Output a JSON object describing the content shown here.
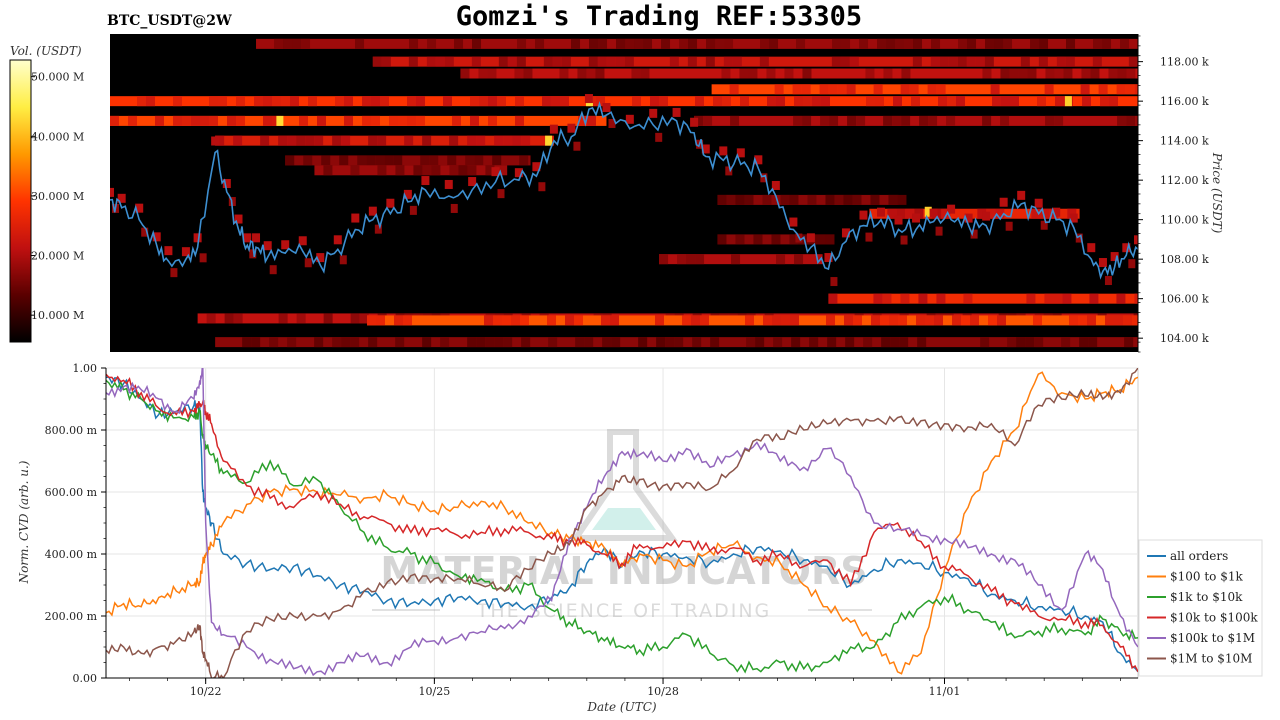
{
  "header": {
    "title": "Gomzi's Trading REF:53305",
    "pair_label": "BTC_USDT@2W"
  },
  "watermark": {
    "line1": "MATERIAL INDICATORS",
    "line2": "THE SCIENCE OF TRADING"
  },
  "chart_data": [
    {
      "type": "heatmap",
      "name": "order-book-heatmap",
      "colorbar": {
        "label": "Vol. (USDT)",
        "ticks": [
          "10.000 M",
          "20.000 M",
          "30.000 M",
          "40.000 M",
          "50.000 M"
        ],
        "tick_values": [
          10,
          20,
          30,
          40,
          50
        ],
        "range": [
          5.5,
          52.8
        ],
        "colors": [
          "#000000",
          "#5a0000",
          "#c01010",
          "#ff3300",
          "#ff9900",
          "#ffee44",
          "#ffffcc"
        ]
      },
      "ylabel": "Price (USDT)",
      "ylim": [
        103.3,
        119.4
      ],
      "yticks": [
        "104.00 k",
        "106.00 k",
        "108.00 k",
        "110.00 k",
        "112.00 k",
        "114.00 k",
        "116.00 k",
        "118.00 k"
      ],
      "ytick_values": [
        104,
        106,
        108,
        110,
        112,
        114,
        116,
        118
      ],
      "xlim": [
        0,
        17.6
      ],
      "bands": [
        {
          "price": 118.9,
          "x0": 2.5,
          "x1": 17.6,
          "intensity": 0.45
        },
        {
          "price": 118.0,
          "x0": 4.5,
          "x1": 17.6,
          "intensity": 0.6
        },
        {
          "price": 117.4,
          "x0": 6.0,
          "x1": 17.6,
          "intensity": 0.55
        },
        {
          "price": 116.6,
          "x0": 10.3,
          "x1": 17.6,
          "intensity": 0.85
        },
        {
          "price": 116.0,
          "x0": 0.0,
          "x1": 17.6,
          "intensity": 0.8
        },
        {
          "price": 115.0,
          "x0": 0.0,
          "x1": 8.5,
          "intensity": 0.85
        },
        {
          "price": 115.0,
          "x0": 10.0,
          "x1": 17.6,
          "intensity": 0.5
        },
        {
          "price": 114.0,
          "x0": 1.8,
          "x1": 7.6,
          "intensity": 0.65
        },
        {
          "price": 113.0,
          "x0": 3.0,
          "x1": 7.2,
          "intensity": 0.4
        },
        {
          "price": 112.5,
          "x0": 3.5,
          "x1": 6.8,
          "intensity": 0.45
        },
        {
          "price": 111.0,
          "x0": 10.4,
          "x1": 13.5,
          "intensity": 0.4
        },
        {
          "price": 110.3,
          "x0": 13.0,
          "x1": 16.6,
          "intensity": 0.7
        },
        {
          "price": 109.0,
          "x0": 10.4,
          "x1": 12.4,
          "intensity": 0.4
        },
        {
          "price": 108.0,
          "x0": 9.4,
          "x1": 12.2,
          "intensity": 0.5
        },
        {
          "price": 106.0,
          "x0": 12.3,
          "x1": 17.6,
          "intensity": 0.75
        },
        {
          "price": 105.0,
          "x0": 1.5,
          "x1": 17.6,
          "intensity": 0.55
        },
        {
          "price": 104.9,
          "x0": 4.4,
          "x1": 17.6,
          "intensity": 0.9
        },
        {
          "price": 103.8,
          "x0": 1.8,
          "x1": 17.6,
          "intensity": 0.4
        }
      ],
      "hot_spots": [
        {
          "x": 2.9,
          "price": 115.0,
          "intensity": 1.0
        },
        {
          "x": 8.2,
          "price": 116.0,
          "intensity": 1.0
        },
        {
          "x": 7.5,
          "price": 114.0,
          "intensity": 0.95
        },
        {
          "x": 16.4,
          "price": 116.0,
          "intensity": 0.9
        },
        {
          "x": 14.0,
          "price": 110.4,
          "intensity": 0.9
        }
      ],
      "series": [
        {
          "name": "price",
          "color": "#3d8fd1",
          "x": [
            0,
            0.2,
            0.5,
            0.8,
            1.0,
            1.3,
            1.5,
            1.8,
            2.0,
            2.2,
            2.35,
            2.5,
            2.7,
            3.0,
            3.3,
            3.6,
            3.9,
            4.2,
            4.5,
            4.8,
            5.1,
            5.4,
            5.8,
            6.2,
            6.6,
            7.0,
            7.3,
            7.6,
            7.9,
            8.2,
            8.5,
            8.9,
            9.3,
            9.7,
            10.0,
            10.2,
            10.5,
            10.8,
            11.1,
            11.4,
            11.7,
            12.0,
            12.3,
            12.6,
            12.9,
            13.2,
            13.5,
            13.8,
            14.1,
            14.4,
            14.7,
            15.0,
            15.3,
            15.6,
            15.9,
            16.2,
            16.5,
            16.8,
            17.0,
            17.2,
            17.4,
            17.6
          ],
          "y": [
            111.0,
            110.6,
            110.0,
            108.7,
            107.9,
            108.0,
            108.6,
            113.4,
            111.4,
            109.5,
            108.7,
            108.6,
            108.1,
            108.3,
            108.4,
            107.7,
            108.5,
            109.5,
            110.0,
            110.3,
            110.9,
            111.5,
            111.2,
            111.5,
            111.9,
            112.0,
            112.2,
            114.0,
            114.2,
            115.6,
            115.3,
            114.6,
            114.8,
            115.0,
            114.4,
            113.2,
            113.0,
            112.8,
            112.6,
            111.2,
            109.5,
            108.6,
            107.5,
            108.9,
            109.7,
            110.0,
            109.5,
            109.5,
            109.9,
            110.0,
            109.7,
            109.7,
            110.3,
            110.8,
            110.3,
            110.0,
            109.6,
            108.0,
            107.4,
            107.6,
            108.2,
            108.5
          ]
        }
      ]
    },
    {
      "type": "line",
      "name": "cvd-chart",
      "xlabel": "Date (UTC)",
      "ylabel": "Norm. CVD (arb. u.)",
      "ylim": [
        0,
        1
      ],
      "yticks": [
        "0.00",
        "200.00 m",
        "400.00 m",
        "600.00 m",
        "800.00 m",
        "1.00"
      ],
      "ytick_values": [
        0,
        0.2,
        0.4,
        0.6,
        0.8,
        1.0
      ],
      "xlim": [
        0,
        17.6
      ],
      "xticks": [
        "10/22",
        "10/25",
        "10/28",
        "11/01"
      ],
      "xtick_values": [
        1.7,
        5.6,
        9.5,
        14.3
      ],
      "legend": "bottom-right",
      "grid": true,
      "series": [
        {
          "name": "all orders",
          "color": "#1f77b4",
          "x": [
            0,
            0.3,
            0.6,
            0.9,
            1.2,
            1.5,
            1.6,
            1.65,
            1.7,
            1.8,
            2.0,
            2.4,
            2.8,
            3.2,
            3.6,
            4.0,
            4.4,
            4.8,
            5.2,
            5.6,
            6.0,
            6.4,
            6.8,
            7.2,
            7.6,
            7.9,
            8.2,
            8.5,
            8.8,
            9.1,
            9.5,
            9.9,
            10.3,
            10.7,
            11.1,
            11.5,
            11.9,
            12.3,
            12.7,
            13.1,
            13.5,
            13.9,
            14.3,
            14.7,
            15.1,
            15.5,
            15.9,
            16.3,
            16.7,
            17.0,
            17.3,
            17.6
          ],
          "y": [
            0.97,
            0.95,
            0.9,
            0.85,
            0.86,
            0.88,
            0.87,
            0.6,
            0.55,
            0.5,
            0.4,
            0.37,
            0.35,
            0.36,
            0.33,
            0.3,
            0.28,
            0.25,
            0.24,
            0.25,
            0.26,
            0.25,
            0.24,
            0.23,
            0.26,
            0.29,
            0.37,
            0.42,
            0.36,
            0.41,
            0.4,
            0.39,
            0.37,
            0.4,
            0.42,
            0.41,
            0.38,
            0.36,
            0.3,
            0.35,
            0.38,
            0.37,
            0.34,
            0.32,
            0.27,
            0.25,
            0.23,
            0.22,
            0.2,
            0.18,
            0.08,
            0.02
          ]
        },
        {
          "name": "$100 to $1k",
          "color": "#ff7f0e",
          "x": [
            0,
            0.3,
            0.6,
            0.9,
            1.2,
            1.5,
            1.6,
            1.65,
            1.7,
            1.8,
            2.0,
            2.4,
            2.8,
            3.2,
            3.6,
            4.0,
            4.4,
            4.8,
            5.2,
            5.6,
            6.0,
            6.4,
            6.8,
            7.2,
            7.6,
            7.9,
            8.2,
            8.5,
            8.8,
            9.1,
            9.5,
            9.9,
            10.3,
            10.7,
            11.1,
            11.5,
            11.9,
            12.3,
            12.7,
            13.1,
            13.5,
            13.9,
            14.3,
            14.7,
            15.1,
            15.5,
            15.9,
            16.3,
            16.7,
            17.0,
            17.3,
            17.6
          ],
          "y": [
            0.21,
            0.24,
            0.23,
            0.26,
            0.28,
            0.3,
            0.31,
            0.37,
            0.4,
            0.43,
            0.5,
            0.56,
            0.6,
            0.61,
            0.6,
            0.59,
            0.58,
            0.59,
            0.56,
            0.54,
            0.55,
            0.57,
            0.55,
            0.5,
            0.47,
            0.45,
            0.44,
            0.42,
            0.36,
            0.4,
            0.38,
            0.36,
            0.41,
            0.43,
            0.39,
            0.37,
            0.3,
            0.23,
            0.18,
            0.12,
            0.02,
            0.08,
            0.35,
            0.55,
            0.7,
            0.8,
            0.98,
            0.92,
            0.9,
            0.92,
            0.93,
            0.97
          ]
        },
        {
          "name": "$1k to $10k",
          "color": "#2ca02c",
          "x": [
            0,
            0.3,
            0.6,
            0.9,
            1.2,
            1.5,
            1.6,
            1.65,
            1.7,
            1.8,
            2.0,
            2.4,
            2.8,
            3.2,
            3.6,
            4.0,
            4.4,
            4.8,
            5.2,
            5.6,
            6.0,
            6.4,
            6.8,
            7.2,
            7.6,
            7.9,
            8.2,
            8.5,
            8.8,
            9.1,
            9.5,
            9.9,
            10.3,
            10.7,
            11.1,
            11.5,
            11.9,
            12.3,
            12.7,
            13.1,
            13.5,
            13.9,
            14.3,
            14.7,
            15.1,
            15.5,
            15.9,
            16.3,
            16.7,
            17.0,
            17.3,
            17.6
          ],
          "y": [
            0.96,
            0.93,
            0.9,
            0.86,
            0.84,
            0.84,
            0.86,
            0.78,
            0.75,
            0.72,
            0.66,
            0.63,
            0.7,
            0.62,
            0.64,
            0.55,
            0.47,
            0.42,
            0.4,
            0.37,
            0.33,
            0.32,
            0.28,
            0.3,
            0.22,
            0.18,
            0.15,
            0.12,
            0.1,
            0.09,
            0.1,
            0.14,
            0.08,
            0.04,
            0.03,
            0.05,
            0.03,
            0.05,
            0.1,
            0.1,
            0.18,
            0.23,
            0.26,
            0.22,
            0.18,
            0.13,
            0.15,
            0.16,
            0.14,
            0.19,
            0.15,
            0.13
          ]
        },
        {
          "name": "$10k to $100k",
          "color": "#d62728",
          "x": [
            0,
            0.3,
            0.6,
            0.9,
            1.2,
            1.5,
            1.6,
            1.65,
            1.7,
            1.8,
            2.0,
            2.4,
            2.8,
            3.2,
            3.6,
            4.0,
            4.4,
            4.8,
            5.2,
            5.6,
            6.0,
            6.4,
            6.8,
            7.2,
            7.6,
            7.9,
            8.2,
            8.5,
            8.8,
            9.1,
            9.5,
            9.9,
            10.3,
            10.7,
            11.1,
            11.5,
            11.9,
            12.3,
            12.7,
            13.1,
            13.5,
            13.9,
            14.3,
            14.7,
            15.1,
            15.5,
            15.9,
            16.3,
            16.7,
            17.0,
            17.3,
            17.6
          ],
          "y": [
            0.98,
            0.96,
            0.92,
            0.87,
            0.85,
            0.86,
            0.88,
            0.89,
            0.86,
            0.82,
            0.7,
            0.62,
            0.58,
            0.55,
            0.6,
            0.56,
            0.52,
            0.5,
            0.47,
            0.48,
            0.46,
            0.47,
            0.48,
            0.47,
            0.45,
            0.44,
            0.43,
            0.4,
            0.37,
            0.43,
            0.42,
            0.44,
            0.41,
            0.42,
            0.38,
            0.4,
            0.36,
            0.38,
            0.3,
            0.47,
            0.5,
            0.44,
            0.36,
            0.33,
            0.28,
            0.24,
            0.2,
            0.19,
            0.18,
            0.17,
            0.1,
            0.02
          ]
        },
        {
          "name": "$100k to $1M",
          "color": "#9467bd",
          "x": [
            0,
            0.3,
            0.6,
            0.9,
            1.2,
            1.5,
            1.6,
            1.65,
            1.7,
            1.8,
            2.0,
            2.4,
            2.8,
            3.2,
            3.6,
            4.0,
            4.4,
            4.8,
            5.2,
            5.6,
            6.0,
            6.4,
            6.8,
            7.2,
            7.6,
            7.9,
            8.2,
            8.5,
            8.8,
            9.1,
            9.5,
            9.9,
            10.3,
            10.7,
            11.1,
            11.5,
            11.9,
            12.3,
            12.7,
            13.1,
            13.5,
            13.9,
            14.3,
            14.7,
            15.1,
            15.5,
            15.9,
            16.3,
            16.7,
            17.0,
            17.3,
            17.6
          ],
          "y": [
            0.92,
            0.94,
            0.93,
            0.9,
            0.86,
            0.9,
            0.96,
            1.0,
            0.5,
            0.18,
            0.14,
            0.1,
            0.06,
            0.03,
            0.02,
            0.05,
            0.07,
            0.05,
            0.1,
            0.12,
            0.13,
            0.15,
            0.16,
            0.2,
            0.25,
            0.45,
            0.55,
            0.65,
            0.73,
            0.72,
            0.7,
            0.74,
            0.68,
            0.72,
            0.76,
            0.7,
            0.68,
            0.74,
            0.65,
            0.5,
            0.48,
            0.46,
            0.45,
            0.42,
            0.4,
            0.38,
            0.3,
            0.22,
            0.4,
            0.35,
            0.2,
            0.1
          ]
        },
        {
          "name": "$1M to $10M",
          "color": "#8c564b",
          "x": [
            0,
            0.3,
            0.6,
            0.9,
            1.2,
            1.5,
            1.6,
            1.65,
            1.7,
            1.8,
            2.0,
            2.4,
            2.8,
            3.2,
            3.6,
            4.0,
            4.4,
            4.8,
            5.2,
            5.6,
            6.0,
            6.4,
            6.8,
            7.2,
            7.6,
            7.9,
            8.2,
            8.5,
            8.8,
            9.1,
            9.5,
            9.9,
            10.3,
            10.7,
            11.1,
            11.5,
            11.9,
            12.3,
            12.7,
            13.1,
            13.5,
            13.9,
            14.3,
            14.7,
            15.1,
            15.5,
            15.9,
            16.3,
            16.7,
            17.0,
            17.3,
            17.6
          ],
          "y": [
            0.09,
            0.1,
            0.08,
            0.1,
            0.12,
            0.15,
            0.17,
            0.08,
            0.06,
            0.0,
            0.0,
            0.15,
            0.19,
            0.2,
            0.2,
            0.22,
            0.28,
            0.31,
            0.33,
            0.32,
            0.32,
            0.3,
            0.28,
            0.35,
            0.4,
            0.43,
            0.55,
            0.6,
            0.65,
            0.64,
            0.62,
            0.63,
            0.61,
            0.67,
            0.77,
            0.77,
            0.8,
            0.82,
            0.83,
            0.83,
            0.84,
            0.83,
            0.82,
            0.81,
            0.82,
            0.75,
            0.88,
            0.9,
            0.91,
            0.9,
            0.92,
            1.0
          ]
        }
      ]
    }
  ]
}
